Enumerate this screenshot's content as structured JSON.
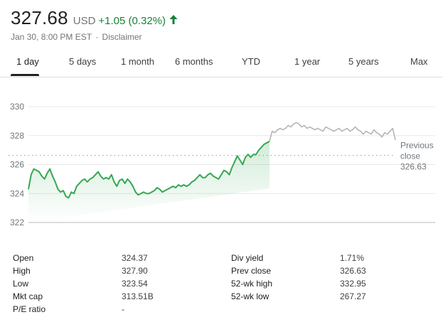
{
  "quote": {
    "price": "327.68",
    "currency": "USD",
    "change": "+1.05 (0.32%)",
    "timestamp": "Jan 30, 8:00 PM EST",
    "separator": "·",
    "disclaimer": "Disclaimer",
    "up_color": "#188038"
  },
  "tabs": [
    {
      "label": "1 day",
      "active": true
    },
    {
      "label": "5 days"
    },
    {
      "label": "1 month"
    },
    {
      "label": "6 months"
    },
    {
      "label": "YTD"
    },
    {
      "label": "1 year"
    },
    {
      "label": "5 years"
    },
    {
      "label": "Max"
    }
  ],
  "chart_data": {
    "type": "line",
    "ylim": [
      322,
      330
    ],
    "yticks": [
      "330",
      "328",
      "326",
      "324",
      "322"
    ],
    "previous_close": {
      "label_line1": "Previous",
      "label_line2": "close",
      "value": "326.63",
      "y": 326.63
    },
    "colors": {
      "regular": "#34a853",
      "after_hours": "#b5b5b5",
      "grid": "#e8e8e8",
      "fill": "#34a853"
    },
    "regular_series": [
      [
        0,
        324.3
      ],
      [
        1,
        325.3
      ],
      [
        2,
        325.7
      ],
      [
        3,
        325.6
      ],
      [
        4,
        325.5
      ],
      [
        5,
        325.2
      ],
      [
        6,
        325.0
      ],
      [
        7,
        325.4
      ],
      [
        8,
        325.7
      ],
      [
        9,
        325.2
      ],
      [
        10,
        324.8
      ],
      [
        11,
        324.3
      ],
      [
        12,
        324.1
      ],
      [
        13,
        324.2
      ],
      [
        14,
        323.8
      ],
      [
        15,
        323.7
      ],
      [
        16,
        324.1
      ],
      [
        17,
        324.0
      ],
      [
        18,
        324.5
      ],
      [
        19,
        324.7
      ],
      [
        20,
        324.9
      ],
      [
        21,
        325.0
      ],
      [
        22,
        324.8
      ],
      [
        23,
        325.0
      ],
      [
        24,
        325.1
      ],
      [
        25,
        325.3
      ],
      [
        26,
        325.5
      ],
      [
        27,
        325.2
      ],
      [
        28,
        325.0
      ],
      [
        29,
        325.1
      ],
      [
        30,
        325.0
      ],
      [
        31,
        325.3
      ],
      [
        32,
        324.8
      ],
      [
        33,
        324.5
      ],
      [
        34,
        324.9
      ],
      [
        35,
        325.0
      ],
      [
        36,
        324.7
      ],
      [
        37,
        325.0
      ],
      [
        38,
        324.8
      ],
      [
        39,
        324.5
      ],
      [
        40,
        324.1
      ],
      [
        41,
        323.9
      ],
      [
        42,
        324.0
      ],
      [
        43,
        324.1
      ],
      [
        44,
        324.0
      ],
      [
        45,
        324.0
      ],
      [
        46,
        324.1
      ],
      [
        47,
        324.2
      ],
      [
        48,
        324.4
      ],
      [
        49,
        324.3
      ],
      [
        50,
        324.1
      ],
      [
        51,
        324.2
      ],
      [
        52,
        324.3
      ],
      [
        53,
        324.4
      ],
      [
        54,
        324.5
      ],
      [
        55,
        324.4
      ],
      [
        56,
        324.6
      ],
      [
        57,
        324.5
      ],
      [
        58,
        324.6
      ],
      [
        59,
        324.5
      ],
      [
        60,
        324.6
      ],
      [
        61,
        324.8
      ],
      [
        62,
        324.9
      ],
      [
        63,
        325.1
      ],
      [
        64,
        325.3
      ],
      [
        65,
        325.1
      ],
      [
        66,
        325.1
      ],
      [
        67,
        325.3
      ],
      [
        68,
        325.4
      ],
      [
        69,
        325.2
      ],
      [
        70,
        325.1
      ],
      [
        71,
        325.0
      ],
      [
        72,
        325.3
      ],
      [
        73,
        325.6
      ],
      [
        74,
        325.5
      ],
      [
        75,
        325.3
      ],
      [
        76,
        325.8
      ],
      [
        77,
        326.2
      ],
      [
        78,
        326.6
      ],
      [
        79,
        326.3
      ],
      [
        80,
        326.0
      ],
      [
        81,
        326.5
      ],
      [
        82,
        326.7
      ],
      [
        83,
        326.5
      ],
      [
        84,
        326.7
      ],
      [
        85,
        326.7
      ],
      [
        86,
        327.0
      ],
      [
        87,
        327.2
      ],
      [
        88,
        327.4
      ],
      [
        89,
        327.5
      ],
      [
        90,
        327.6
      ]
    ],
    "after_hours_series": [
      [
        90,
        327.6
      ],
      [
        91,
        328.3
      ],
      [
        92,
        328.2
      ],
      [
        93,
        328.4
      ],
      [
        94,
        328.5
      ],
      [
        95,
        328.4
      ],
      [
        96,
        328.5
      ],
      [
        97,
        328.7
      ],
      [
        98,
        328.6
      ],
      [
        99,
        328.8
      ],
      [
        100,
        328.9
      ],
      [
        101,
        328.8
      ],
      [
        102,
        328.6
      ],
      [
        103,
        328.7
      ],
      [
        104,
        328.5
      ],
      [
        105,
        328.6
      ],
      [
        106,
        328.5
      ],
      [
        107,
        328.4
      ],
      [
        108,
        328.5
      ],
      [
        109,
        328.4
      ],
      [
        110,
        328.3
      ],
      [
        111,
        328.6
      ],
      [
        112,
        328.5
      ],
      [
        113,
        328.4
      ],
      [
        114,
        328.3
      ],
      [
        115,
        328.4
      ],
      [
        116,
        328.5
      ],
      [
        117,
        328.3
      ],
      [
        118,
        328.4
      ],
      [
        119,
        328.5
      ],
      [
        120,
        328.3
      ],
      [
        121,
        328.4
      ],
      [
        122,
        328.6
      ],
      [
        123,
        328.4
      ],
      [
        124,
        328.3
      ],
      [
        125,
        328.1
      ],
      [
        126,
        328.3
      ],
      [
        127,
        328.2
      ],
      [
        128,
        328.1
      ],
      [
        129,
        328.4
      ],
      [
        130,
        328.2
      ],
      [
        131,
        328.1
      ],
      [
        132,
        327.9
      ],
      [
        133,
        328.2
      ],
      [
        134,
        328.1
      ],
      [
        135,
        328.3
      ],
      [
        136,
        328.5
      ],
      [
        137,
        327.7
      ]
    ]
  },
  "stats": [
    {
      "label": "Open",
      "value": "324.37"
    },
    {
      "label": "High",
      "value": "327.90"
    },
    {
      "label": "Low",
      "value": "323.54"
    },
    {
      "label": "Mkt cap",
      "value": "313.51B"
    },
    {
      "label": "P/E ratio",
      "value": "-"
    },
    {
      "label": "Div yield",
      "value": "1.71%"
    },
    {
      "label": "Prev close",
      "value": "326.63"
    },
    {
      "label": "52-wk high",
      "value": "332.95"
    },
    {
      "label": "52-wk low",
      "value": "267.27"
    }
  ]
}
